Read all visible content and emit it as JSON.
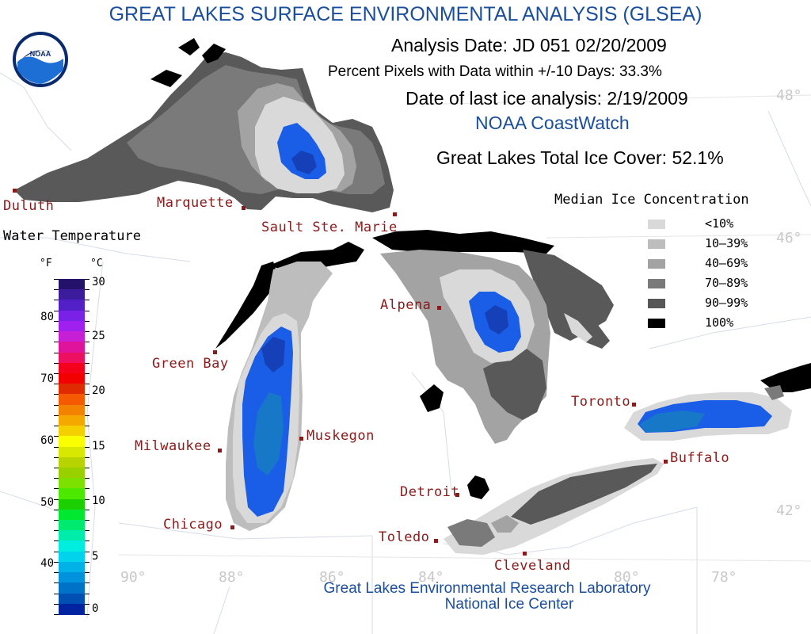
{
  "title": "GREAT LAKES SURFACE ENVIRONMENTAL ANALYSIS (GLSEA)",
  "analysis_date": "Analysis Date:  JD 051 02/20/2009",
  "percent_pixels": "Percent Pixels with Data within +/-10 Days:  33.3%",
  "last_ice_analysis": "Date of last ice analysis: 2/19/2009",
  "source": "NOAA CoastWatch",
  "total_ice_cover": "Great Lakes Total Ice Cover:  52.1%",
  "logo": {
    "text": "NOAA",
    "icon": "noaa-logo"
  },
  "ice_legend": {
    "title": "Median Ice Concentration",
    "items": [
      {
        "label": "<10%",
        "color": "#d9d9d9"
      },
      {
        "label": "10–39%",
        "color": "#bdbdbd"
      },
      {
        "label": "40–69%",
        "color": "#a3a3a3"
      },
      {
        "label": "70–89%",
        "color": "#7a7a7a"
      },
      {
        "label": "90–99%",
        "color": "#575757"
      },
      {
        "label": "100%",
        "color": "#000000"
      }
    ]
  },
  "water_temperature": {
    "title": "Water Temperature",
    "unit_f": "°F",
    "unit_c": "°C",
    "f_ticks": [
      "80",
      "70",
      "60",
      "50",
      "40"
    ],
    "c_ticks": [
      "30",
      "25",
      "20",
      "15",
      "10",
      "5",
      "0"
    ],
    "colors": [
      "#24116b",
      "#3a1c9c",
      "#5320c8",
      "#7a21e8",
      "#a020f0",
      "#c71fd6",
      "#e0139c",
      "#ee1060",
      "#f4001c",
      "#f20000",
      "#e02a00",
      "#f55a00",
      "#f28200",
      "#f5a800",
      "#f5d000",
      "#faff00",
      "#d8e800",
      "#b8d400",
      "#98d000",
      "#7ce000",
      "#4ce800",
      "#1cd000",
      "#00e830",
      "#00ea70",
      "#00ecab",
      "#00eee0",
      "#00d3ec",
      "#00b2e8",
      "#0092dc",
      "#0072c8",
      "#0050b4",
      "#0024a0"
    ]
  },
  "cities": [
    "Duluth",
    "Marquette",
    "Sault Ste. Marie",
    "Alpena",
    "Green Bay",
    "Milwaukee",
    "Muskegon",
    "Chicago",
    "Detroit",
    "Toledo",
    "Cleveland",
    "Toronto",
    "Buffalo"
  ],
  "graticule": [
    "48°",
    "46°",
    "42°",
    "90°",
    "88°",
    "86°",
    "84°",
    "80°",
    "78°"
  ],
  "footer": {
    "line1": "Great Lakes Environmental Research Laboratory",
    "line2": "National Ice Center"
  }
}
